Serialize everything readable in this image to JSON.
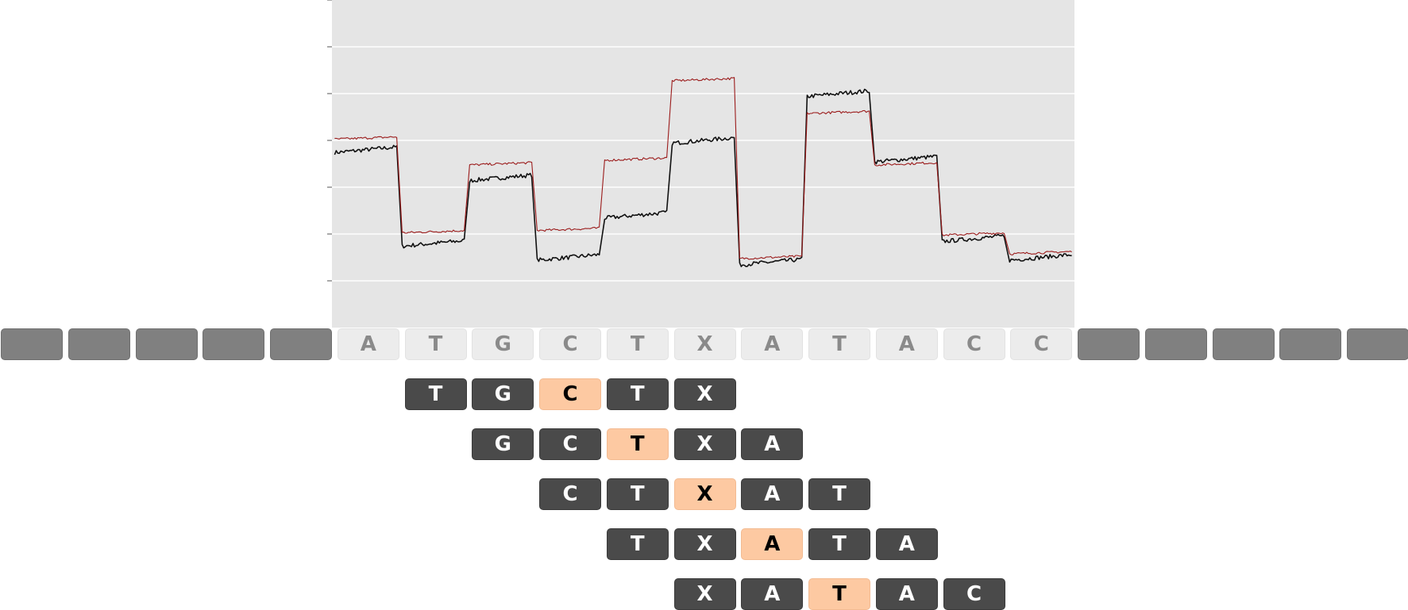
{
  "sequence_track": [
    "",
    "",
    "",
    "",
    "",
    "A",
    "T",
    "G",
    "C",
    "T",
    "X",
    "A",
    "T",
    "A",
    "C",
    "C",
    "",
    "",
    "",
    "",
    ""
  ],
  "kmer_rows": [
    {
      "start": 6,
      "bases": [
        "T",
        "G",
        "C",
        "T",
        "X"
      ],
      "center": 2
    },
    {
      "start": 7,
      "bases": [
        "G",
        "C",
        "T",
        "X",
        "A"
      ],
      "center": 2
    },
    {
      "start": 8,
      "bases": [
        "C",
        "T",
        "X",
        "A",
        "T"
      ],
      "center": 2
    },
    {
      "start": 9,
      "bases": [
        "T",
        "X",
        "A",
        "T",
        "A"
      ],
      "center": 2
    },
    {
      "start": 10,
      "bases": [
        "X",
        "A",
        "T",
        "A",
        "C"
      ],
      "center": 2
    }
  ],
  "colors": {
    "plot_background": "#e5e5e5",
    "gridline": "#ffffff",
    "trace_black": "#111111",
    "trace_red": "#9b1b1b",
    "sequence_cell": "#ececec",
    "empty_cell": "#808080",
    "kmer_cell": "#4a4a4a",
    "center_cell": "#fdc9a2"
  },
  "chart_data": {
    "type": "line",
    "title": "",
    "xlabel": "",
    "ylabel": "",
    "grid": true,
    "ylim": [
      0,
      7
    ],
    "yticks": [
      1,
      2,
      3,
      4,
      5,
      6,
      7
    ],
    "xlim": [
      0,
      11
    ],
    "x_categories": [
      "A",
      "T",
      "G",
      "C",
      "T",
      "X",
      "A",
      "T",
      "A",
      "C",
      "C"
    ],
    "series": [
      {
        "color": "black",
        "values": [
          3.8,
          1.8,
          3.2,
          1.5,
          2.4,
          4.0,
          1.4,
          5.0,
          3.6,
          1.9,
          1.5
        ]
      },
      {
        "color": "red",
        "values": [
          4.05,
          2.05,
          3.5,
          2.1,
          3.6,
          5.3,
          1.5,
          4.6,
          3.5,
          2.0,
          1.6
        ]
      }
    ]
  }
}
